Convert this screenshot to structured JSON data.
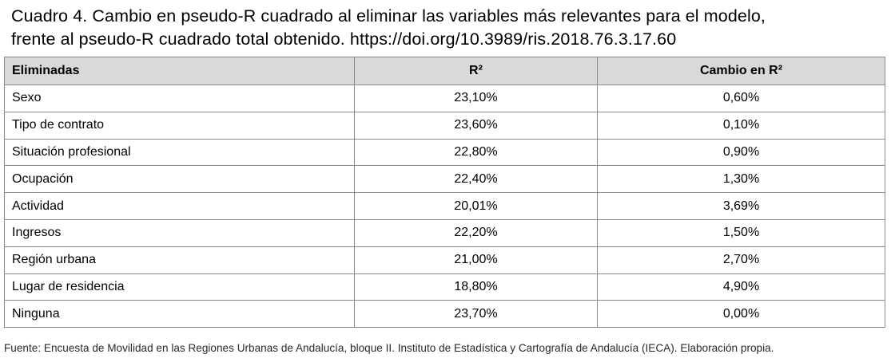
{
  "caption": {
    "line1": "Cuadro 4. Cambio en pseudo-R cuadrado al eliminar las variables más relevantes para el modelo,",
    "line2": "frente al pseudo-R cuadrado total obtenido. https://doi.org/10.3989/ris.2018.76.3.17.60"
  },
  "table": {
    "headers": [
      "Eliminadas",
      "R²",
      "Cambio en R²"
    ],
    "rows": [
      [
        "Sexo",
        "23,10%",
        "0,60%"
      ],
      [
        "Tipo de contrato",
        "23,60%",
        "0,10%"
      ],
      [
        "Situación profesional",
        "22,80%",
        "0,90%"
      ],
      [
        "Ocupación",
        "22,40%",
        "1,30%"
      ],
      [
        "Actividad",
        "20,01%",
        "3,69%"
      ],
      [
        "Ingresos",
        "22,20%",
        "1,50%"
      ],
      [
        "Región urbana",
        "21,00%",
        "2,70%"
      ],
      [
        "Lugar de residencia",
        "18,80%",
        "4,90%"
      ],
      [
        "Ninguna",
        "23,70%",
        "0,00%"
      ]
    ]
  },
  "footer": {
    "text": "Fuente: Encuesta de Movilidad en las Regiones Urbanas de Andalucía, bloque II. Instituto de Estadística y Cartografía de Andalucía (IECA). Elaboración propia."
  }
}
